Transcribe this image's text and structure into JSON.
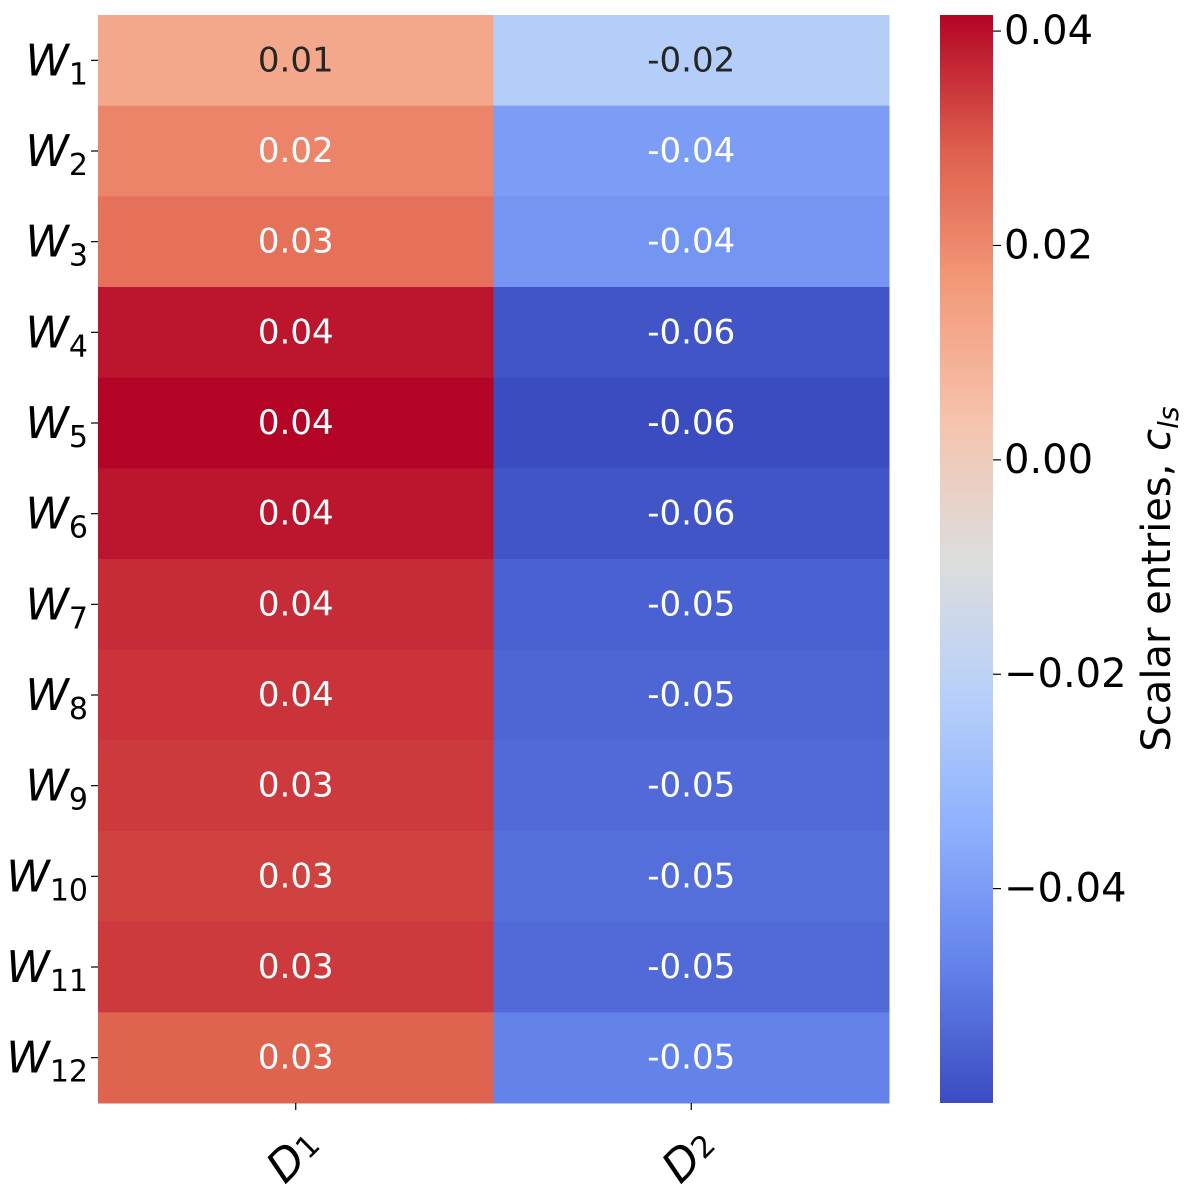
{
  "chart_data": {
    "type": "heatmap",
    "rows": [
      {
        "base": "W",
        "sub": "1"
      },
      {
        "base": "W",
        "sub": "2"
      },
      {
        "base": "W",
        "sub": "3"
      },
      {
        "base": "W",
        "sub": "4"
      },
      {
        "base": "W",
        "sub": "5"
      },
      {
        "base": "W",
        "sub": "6"
      },
      {
        "base": "W",
        "sub": "7"
      },
      {
        "base": "W",
        "sub": "8"
      },
      {
        "base": "W",
        "sub": "9"
      },
      {
        "base": "W",
        "sub": "10"
      },
      {
        "base": "W",
        "sub": "11"
      },
      {
        "base": "W",
        "sub": "12"
      }
    ],
    "columns": [
      {
        "base": "D",
        "sub": "1"
      },
      {
        "base": "D",
        "sub": "2"
      }
    ],
    "values": [
      [
        0.012,
        -0.023
      ],
      [
        0.021,
        -0.04
      ],
      [
        0.025,
        -0.042
      ],
      [
        0.039,
        -0.058
      ],
      [
        0.0415,
        -0.06
      ],
      [
        0.039,
        -0.058
      ],
      [
        0.036,
        -0.055
      ],
      [
        0.035,
        -0.054
      ],
      [
        0.034,
        -0.053
      ],
      [
        0.033,
        -0.052
      ],
      [
        0.034,
        -0.053
      ],
      [
        0.028,
        -0.047
      ]
    ],
    "cell_labels": [
      [
        "0.01",
        "-0.02"
      ],
      [
        "0.02",
        "-0.04"
      ],
      [
        "0.03",
        "-0.04"
      ],
      [
        "0.04",
        "-0.06"
      ],
      [
        "0.04",
        "-0.06"
      ],
      [
        "0.04",
        "-0.06"
      ],
      [
        "0.04",
        "-0.05"
      ],
      [
        "0.04",
        "-0.05"
      ],
      [
        "0.03",
        "-0.05"
      ],
      [
        "0.03",
        "-0.05"
      ],
      [
        "0.03",
        "-0.05"
      ],
      [
        "0.03",
        "-0.05"
      ]
    ],
    "colormap": "coolwarm",
    "vmin": -0.06,
    "vmax": 0.0415,
    "colorbar": {
      "ticks": [
        0.04,
        0.02,
        0.0,
        -0.02,
        -0.04
      ],
      "tick_labels": [
        "0.04",
        "0.02",
        "0.00",
        "−0.02",
        "−0.04"
      ],
      "label_text": "Scalar entries, ",
      "label_symbol": "c",
      "label_sub": "ls"
    }
  }
}
